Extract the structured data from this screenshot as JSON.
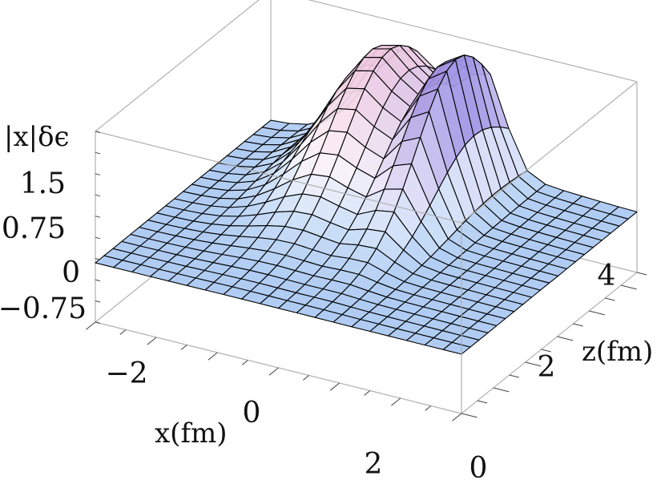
{
  "chart_data": {
    "type": "surface3d",
    "title": "",
    "xlabel": "x(fm)",
    "ylabel": "z(fm)",
    "zlabel": "|x|δϵ",
    "xlim": [
      -3,
      3
    ],
    "ylim": [
      0,
      5.5
    ],
    "zlim": [
      -0.75,
      1.6
    ],
    "x_ticks": [
      "−2",
      "0",
      "2"
    ],
    "y_ticks": [
      "0",
      "2",
      "4"
    ],
    "z_ticks": [
      "1.5",
      "0.75",
      "0",
      "−0.75"
    ],
    "x_tick_values": [
      -2,
      0,
      2
    ],
    "y_tick_values": [
      0,
      2,
      4
    ],
    "z_tick_values": [
      1.5,
      0.75,
      0,
      -0.75
    ],
    "mesh_divisions": [
      20,
      20
    ],
    "surface": {
      "description_of_features": "two ridges peaking near z≈4.5: a broad peak at x≈-0.7 (height≈1.55) and a narrow peak at x≈+0.5 (height≈1.5), decaying toward z=0 and large |x|",
      "peaks": [
        {
          "x": -0.7,
          "z": 4.6,
          "height": 1.55
        },
        {
          "x": 0.55,
          "z": 4.4,
          "height": 1.5
        }
      ]
    },
    "colors": {
      "mesh_line": "#000000",
      "low": "#a9c8f2",
      "mid": "#ffffff",
      "high_warm": "#f2b9d2",
      "high_cool": "#5a4fd8",
      "box": "#b0b0b0"
    }
  }
}
